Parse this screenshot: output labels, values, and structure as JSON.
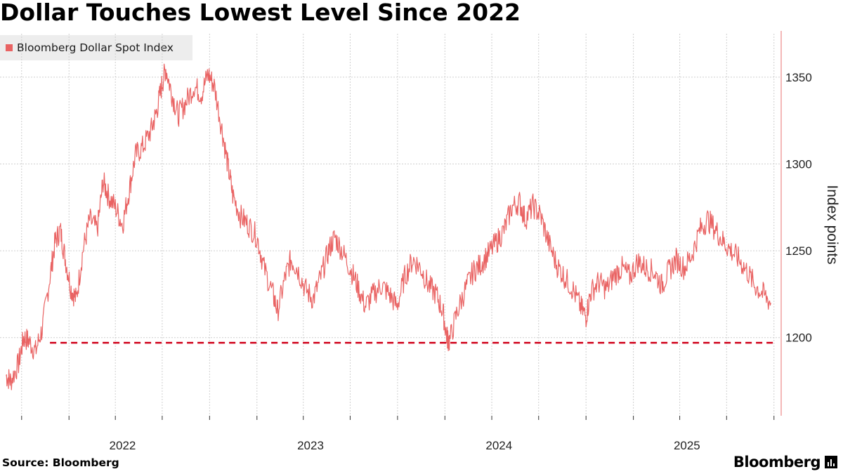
{
  "title": "Dollar Touches Lowest Level Since 2022",
  "source": "Source: Bloomberg",
  "brand": "Bloomberg",
  "brand_icon": "bloomberg-terminal-icon",
  "colors": {
    "series": "#e96363",
    "threshold": "#d0021b",
    "grid": "#cfcfcf",
    "axis": "#f0a0a0"
  },
  "chart_data": {
    "type": "line",
    "title": "Dollar Touches Lowest Level Since 2022",
    "series": [
      {
        "name": "Bloomberg Dollar Spot Index",
        "points": [
          [
            "2021-09-01",
            1178
          ],
          [
            "2021-09-10",
            1175
          ],
          [
            "2021-09-25",
            1185
          ],
          [
            "2021-10-05",
            1200
          ],
          [
            "2021-10-15",
            1198
          ],
          [
            "2021-10-28",
            1192
          ],
          [
            "2021-11-10",
            1205
          ],
          [
            "2021-11-25",
            1235
          ],
          [
            "2021-12-05",
            1255
          ],
          [
            "2021-12-15",
            1262
          ],
          [
            "2021-12-25",
            1245
          ],
          [
            "2022-01-05",
            1228
          ],
          [
            "2022-01-15",
            1222
          ],
          [
            "2022-01-28",
            1250
          ],
          [
            "2022-02-10",
            1268
          ],
          [
            "2022-02-25",
            1262
          ],
          [
            "2022-03-08",
            1290
          ],
          [
            "2022-03-18",
            1282
          ],
          [
            "2022-04-01",
            1275
          ],
          [
            "2022-04-15",
            1265
          ],
          [
            "2022-04-28",
            1285
          ],
          [
            "2022-05-10",
            1305
          ],
          [
            "2022-05-25",
            1310
          ],
          [
            "2022-06-10",
            1320
          ],
          [
            "2022-06-20",
            1330
          ],
          [
            "2022-06-30",
            1345
          ],
          [
            "2022-07-08",
            1355
          ],
          [
            "2022-07-20",
            1340
          ],
          [
            "2022-08-01",
            1328
          ],
          [
            "2022-08-15",
            1335
          ],
          [
            "2022-09-01",
            1345
          ],
          [
            "2022-09-15",
            1340
          ],
          [
            "2022-09-28",
            1352
          ],
          [
            "2022-10-10",
            1345
          ],
          [
            "2022-10-25",
            1320
          ],
          [
            "2022-11-05",
            1300
          ],
          [
            "2022-11-15",
            1282
          ],
          [
            "2022-11-30",
            1270
          ],
          [
            "2022-12-15",
            1265
          ],
          [
            "2023-01-01",
            1258
          ],
          [
            "2023-01-15",
            1240
          ],
          [
            "2023-02-01",
            1225
          ],
          [
            "2023-02-10",
            1215
          ],
          [
            "2023-02-25",
            1235
          ],
          [
            "2023-03-08",
            1245
          ],
          [
            "2023-03-20",
            1240
          ],
          [
            "2023-04-05",
            1228
          ],
          [
            "2023-04-20",
            1222
          ],
          [
            "2023-05-05",
            1235
          ],
          [
            "2023-05-20",
            1250
          ],
          [
            "2023-06-01",
            1258
          ],
          [
            "2023-06-15",
            1250
          ],
          [
            "2023-07-01",
            1240
          ],
          [
            "2023-07-15",
            1230
          ],
          [
            "2023-07-30",
            1218
          ],
          [
            "2023-08-15",
            1225
          ],
          [
            "2023-08-31",
            1230
          ],
          [
            "2023-09-15",
            1225
          ],
          [
            "2023-09-30",
            1218
          ],
          [
            "2023-10-15",
            1235
          ],
          [
            "2023-10-31",
            1245
          ],
          [
            "2023-11-15",
            1240
          ],
          [
            "2023-11-30",
            1230
          ],
          [
            "2023-12-15",
            1225
          ],
          [
            "2023-12-28",
            1215
          ],
          [
            "2024-01-05",
            1200
          ],
          [
            "2024-01-10",
            1198
          ],
          [
            "2024-01-25",
            1215
          ],
          [
            "2024-02-10",
            1228
          ],
          [
            "2024-02-25",
            1238
          ],
          [
            "2024-03-10",
            1242
          ],
          [
            "2024-03-25",
            1248
          ],
          [
            "2024-04-10",
            1255
          ],
          [
            "2024-04-25",
            1262
          ],
          [
            "2024-05-10",
            1275
          ],
          [
            "2024-05-25",
            1278
          ],
          [
            "2024-06-05",
            1268
          ],
          [
            "2024-06-20",
            1276
          ],
          [
            "2024-07-05",
            1270
          ],
          [
            "2024-07-20",
            1255
          ],
          [
            "2024-08-05",
            1242
          ],
          [
            "2024-08-20",
            1235
          ],
          [
            "2024-09-05",
            1228
          ],
          [
            "2024-09-20",
            1218
          ],
          [
            "2024-10-01",
            1212
          ],
          [
            "2024-10-10",
            1226
          ],
          [
            "2024-10-25",
            1232
          ],
          [
            "2024-11-10",
            1228
          ],
          [
            "2024-11-25",
            1236
          ],
          [
            "2024-12-10",
            1240
          ],
          [
            "2024-12-25",
            1235
          ],
          [
            "2025-01-10",
            1244
          ],
          [
            "2025-01-25",
            1240
          ],
          [
            "2025-02-10",
            1238
          ],
          [
            "2025-02-25",
            1230
          ],
          [
            "2025-03-10",
            1238
          ],
          [
            "2025-03-25",
            1245
          ],
          [
            "2025-04-10",
            1240
          ],
          [
            "2025-04-25",
            1248
          ],
          [
            "2025-05-10",
            1262
          ],
          [
            "2025-05-25",
            1268
          ],
          [
            "2025-06-10",
            1262
          ],
          [
            "2025-06-25",
            1255
          ],
          [
            "2025-07-10",
            1250
          ],
          [
            "2025-07-25",
            1245
          ],
          [
            "2025-08-10",
            1238
          ],
          [
            "2025-08-25",
            1230
          ],
          [
            "2025-09-10",
            1225
          ],
          [
            "2025-09-25",
            1220
          ]
        ]
      }
    ],
    "threshold": {
      "y": 1197,
      "style": "dashed"
    },
    "xlabel": "",
    "ylabel": "Index points",
    "x_ticks": [
      "2022",
      "2023",
      "2024",
      "2025"
    ],
    "y_ticks": [
      1200,
      1250,
      1300,
      1350
    ],
    "ylim": [
      1155,
      1375
    ],
    "grid": true,
    "legend_position": "top-left"
  }
}
